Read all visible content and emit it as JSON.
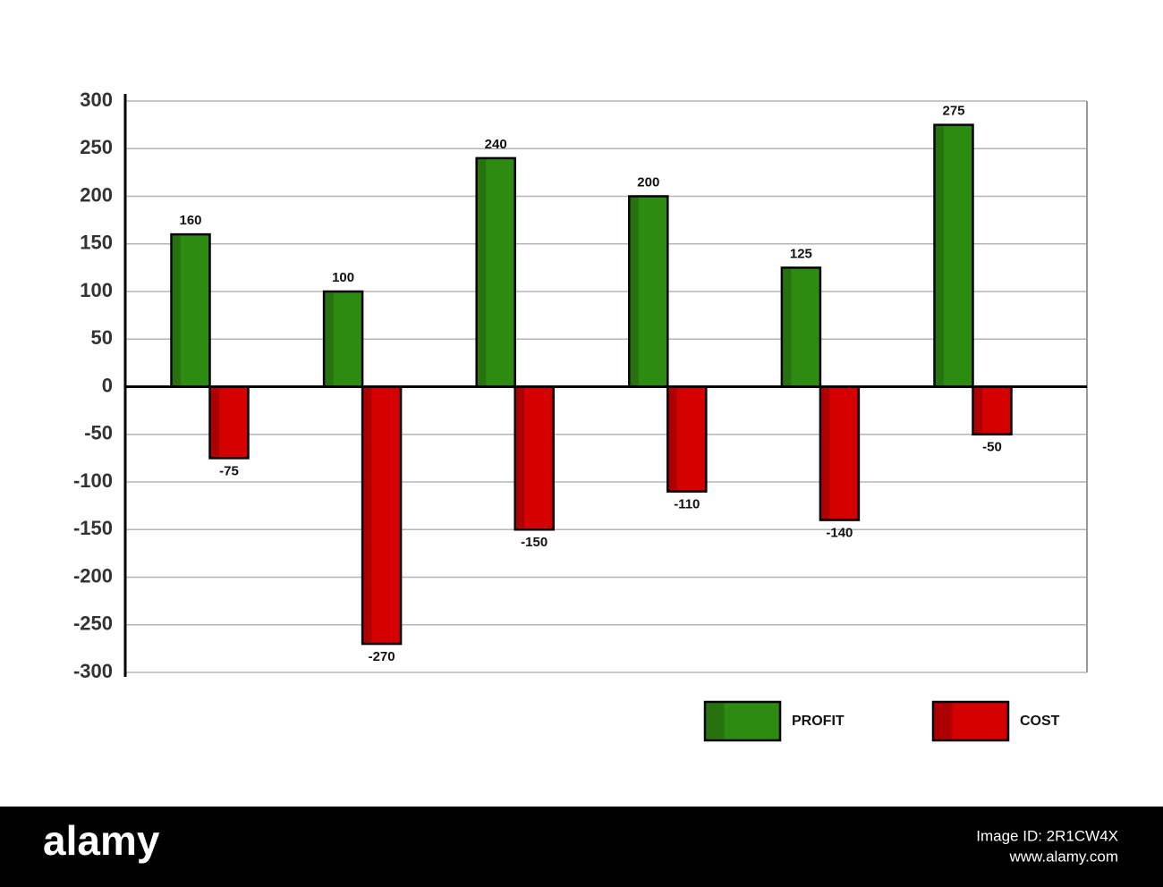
{
  "chart_data": {
    "type": "bar",
    "categories": [
      null,
      null,
      null,
      null,
      null,
      null
    ],
    "series": [
      {
        "name": "PROFIT",
        "color": "#2e8b12",
        "values": [
          160,
          100,
          240,
          200,
          125,
          275
        ]
      },
      {
        "name": "COST",
        "color": "#d40000",
        "values": [
          -75,
          -270,
          -150,
          -110,
          -140,
          -50
        ]
      }
    ],
    "ylim": [
      -300,
      300
    ],
    "yticks": [
      -300,
      -250,
      -200,
      -150,
      -100,
      -50,
      0,
      50,
      100,
      150,
      200,
      250,
      300
    ],
    "grid": true,
    "legend": "bottom-right",
    "data_labels": true
  },
  "watermark": {
    "brand": "alamy",
    "image_id": "Image ID: 2R1CW4X",
    "url": "www.alamy.com"
  }
}
